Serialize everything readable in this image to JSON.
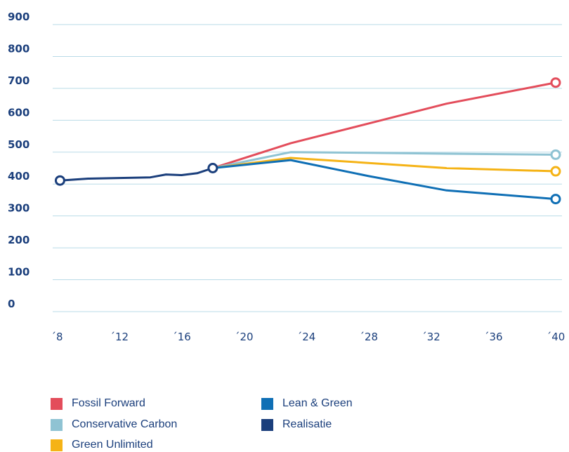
{
  "chart_data": {
    "type": "line",
    "ylim": [
      0,
      900
    ],
    "xlim": [
      2008,
      2040
    ],
    "y_ticks": [
      "900",
      "800",
      "700",
      "600",
      "500",
      "400",
      "300",
      "200",
      "100",
      "0"
    ],
    "y_tick_values": [
      900,
      800,
      700,
      600,
      500,
      400,
      300,
      200,
      100,
      0
    ],
    "x_ticks": [
      "´8",
      "´12",
      "´16",
      "´20",
      "´24",
      "´28",
      "´32",
      "´36",
      "´40"
    ],
    "x_tick_values": [
      2008,
      2012,
      2016,
      2020,
      2024,
      2028,
      2032,
      2036,
      2040
    ],
    "grid": true,
    "legend_position": "bottom-left",
    "series": [
      {
        "name": "Realisatie",
        "color": "#1b3f7c",
        "x": [
          2008.2,
          2010,
          2012,
          2014,
          2015,
          2016,
          2017,
          2018
        ],
        "y": [
          411,
          417,
          419,
          421,
          430,
          428,
          434,
          450
        ],
        "marker_start": true,
        "marker_end": true
      },
      {
        "name": "Fossil Forward",
        "color": "#e34d5b",
        "x": [
          2018,
          2023,
          2028,
          2033,
          2040
        ],
        "y": [
          450,
          528,
          590,
          652,
          718
        ],
        "marker_end": true
      },
      {
        "name": "Conservative Carbon",
        "color": "#8fc3d3",
        "x": [
          2018,
          2023,
          2028,
          2033,
          2040
        ],
        "y": [
          450,
          500,
          498,
          495,
          492
        ],
        "marker_end": true
      },
      {
        "name": "Green Unlimited",
        "color": "#f5b316",
        "x": [
          2018,
          2023,
          2028,
          2033,
          2040
        ],
        "y": [
          450,
          482,
          466,
          450,
          440
        ],
        "marker_end": true
      },
      {
        "name": "Lean & Green",
        "color": "#0f6fb5",
        "x": [
          2018,
          2023,
          2028,
          2033,
          2040
        ],
        "y": [
          450,
          475,
          425,
          380,
          353
        ],
        "marker_end": true
      }
    ],
    "legend": [
      {
        "label": "Fossil Forward",
        "color": "#e34d5b"
      },
      {
        "label": "Conservative Carbon",
        "color": "#8fc3d3"
      },
      {
        "label": "Green Unlimited",
        "color": "#f5b316"
      },
      {
        "label": "Lean & Green",
        "color": "#0f6fb5"
      },
      {
        "label": "Realisatie",
        "color": "#1b3f7c"
      }
    ]
  }
}
